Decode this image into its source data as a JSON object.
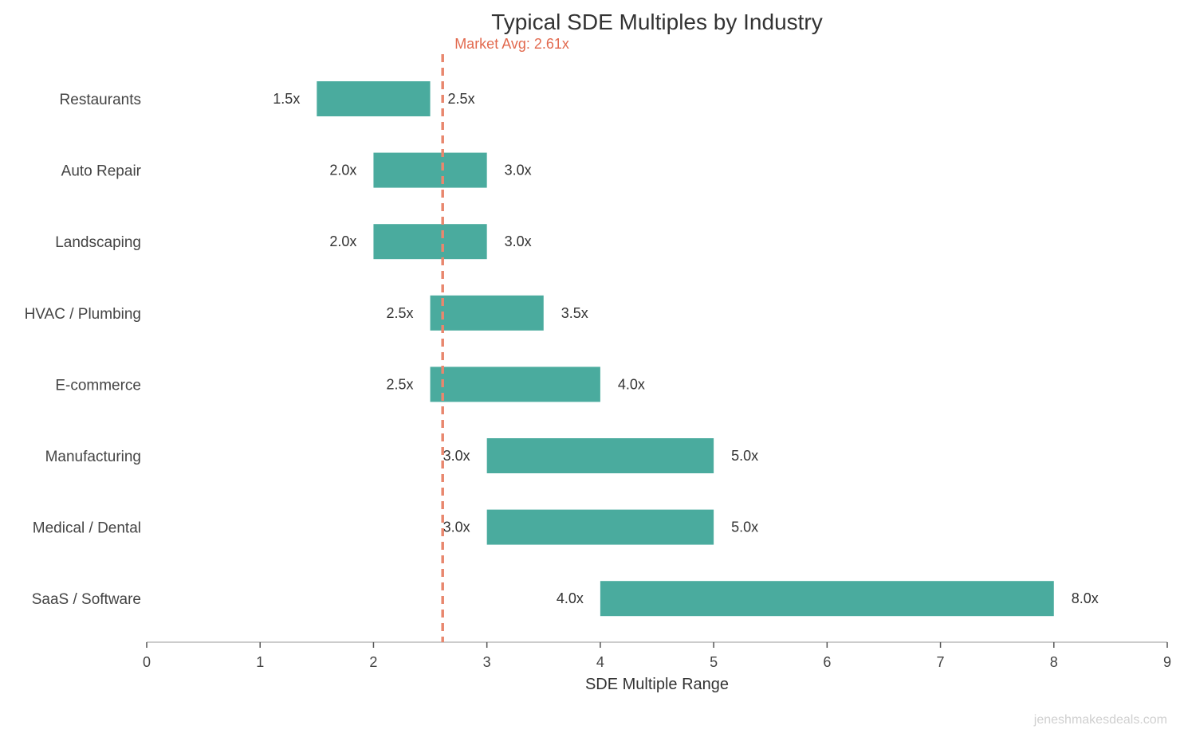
{
  "chart_data": {
    "type": "bar",
    "orientation": "horizontal-range",
    "title": "Typical SDE Multiples by Industry",
    "xlabel": "SDE Multiple Range",
    "ylabel": "",
    "xlim": [
      0,
      9
    ],
    "xticks": [
      "0",
      "1",
      "2",
      "3",
      "4",
      "5",
      "6",
      "7",
      "8",
      "9"
    ],
    "grid": false,
    "categories": [
      "Restaurants",
      "Auto Repair",
      "Landscaping",
      "HVAC / Plumbing",
      "E-commerce",
      "Manufacturing",
      "Medical / Dental",
      "SaaS / Software"
    ],
    "ranges": [
      [
        1.5,
        2.5
      ],
      [
        2.0,
        3.0
      ],
      [
        2.0,
        3.0
      ],
      [
        2.5,
        3.5
      ],
      [
        2.5,
        4.0
      ],
      [
        3.0,
        5.0
      ],
      [
        3.0,
        5.0
      ],
      [
        4.0,
        8.0
      ]
    ],
    "min_labels": [
      "1.5x",
      "2.0x",
      "2.0x",
      "2.5x",
      "2.5x",
      "3.0x",
      "3.0x",
      "4.0x"
    ],
    "max_labels": [
      "2.5x",
      "3.0x",
      "3.0x",
      "3.5x",
      "4.0x",
      "5.0x",
      "5.0x",
      "8.0x"
    ],
    "reference_line": {
      "value": 2.61,
      "label": "Market Avg: 2.61x",
      "style": "dashed"
    },
    "colors": {
      "bar": "#4aab9e",
      "reference": "#e8876e",
      "reference_text": "#e26a4f",
      "text": "#333333",
      "axis": "#cccccc"
    }
  },
  "watermark": "jeneshmakesdeals.com"
}
